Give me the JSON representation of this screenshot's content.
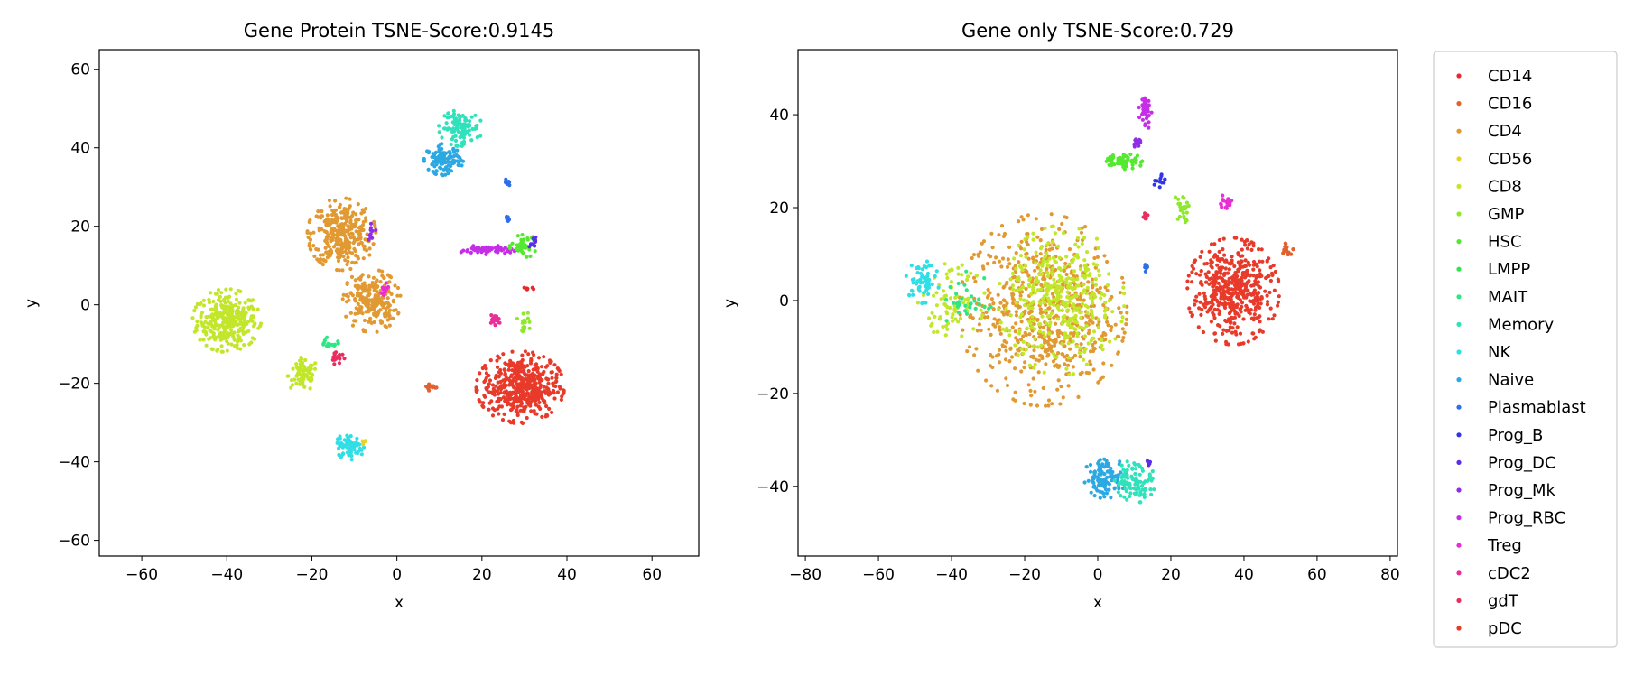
{
  "chart_data": [
    {
      "type": "scatter",
      "title": "Gene Protein TSNE-Score:0.9145",
      "xlabel": "x",
      "ylabel": "y",
      "xlim": [
        -70,
        71
      ],
      "ylim": [
        -64,
        65
      ],
      "xticks": [
        -60,
        -40,
        -20,
        0,
        20,
        40,
        60
      ],
      "xtick_labels": [
        "−60",
        "−40",
        "−20",
        "0",
        "20",
        "40",
        "60"
      ],
      "yticks": [
        -60,
        -40,
        -20,
        0,
        20,
        40,
        60
      ],
      "ytick_labels": [
        "−60",
        "−40",
        "−20",
        "0",
        "20",
        "40",
        "60"
      ],
      "grid": false,
      "clusters": [
        {
          "cell_type": "CD8",
          "cx": -40,
          "cy": -4,
          "rx": 7,
          "ry": 7,
          "n": 320
        },
        {
          "cell_type": "CD8",
          "cx": -22,
          "cy": -18,
          "rx": 3.5,
          "ry": 4,
          "n": 80
        },
        {
          "cell_type": "CD4",
          "cx": -13,
          "cy": 18,
          "rx": 7,
          "ry": 8,
          "n": 330
        },
        {
          "cell_type": "CD4",
          "cx": -6,
          "cy": 1,
          "rx": 6,
          "ry": 7,
          "n": 230
        },
        {
          "cell_type": "Memory",
          "cx": 15,
          "cy": 45,
          "rx": 4.5,
          "ry": 4,
          "n": 110
        },
        {
          "cell_type": "Naive",
          "cx": 11,
          "cy": 37,
          "rx": 4,
          "ry": 3.5,
          "n": 110
        },
        {
          "cell_type": "Prog_RBC",
          "cx": 21,
          "cy": 14,
          "rx": 6,
          "ry": 1,
          "n": 60
        },
        {
          "cell_type": "HSC",
          "cx": 30,
          "cy": 15,
          "rx": 3,
          "ry": 2.5,
          "n": 45
        },
        {
          "cell_type": "pDC",
          "cx": 29,
          "cy": -21,
          "rx": 9,
          "ry": 8,
          "n": 460
        },
        {
          "cell_type": "NK",
          "cx": -11,
          "cy": -36,
          "rx": 3,
          "ry": 3,
          "n": 80
        },
        {
          "cell_type": "CD16",
          "cx": 8,
          "cy": -21,
          "rx": 1.5,
          "ry": 1,
          "n": 15
        },
        {
          "cell_type": "gdT",
          "cx": -14,
          "cy": -13,
          "rx": 1.5,
          "ry": 2,
          "n": 18
        },
        {
          "cell_type": "MAIT",
          "cx": -16,
          "cy": -10,
          "rx": 2,
          "ry": 1.5,
          "n": 15
        },
        {
          "cell_type": "GMP",
          "cx": 30,
          "cy": -4,
          "rx": 1.5,
          "ry": 2.5,
          "n": 20
        },
        {
          "cell_type": "cDC2",
          "cx": 23,
          "cy": -4,
          "rx": 1.5,
          "ry": 1.5,
          "n": 15
        },
        {
          "cell_type": "Plasmablast",
          "cx": 26,
          "cy": 31,
          "rx": 0.6,
          "ry": 1,
          "n": 8
        },
        {
          "cell_type": "Plasmablast",
          "cx": 26,
          "cy": 22,
          "rx": 0.6,
          "ry": 1,
          "n": 8
        },
        {
          "cell_type": "Treg",
          "cx": -3,
          "cy": 4,
          "rx": 1.5,
          "ry": 2,
          "n": 12
        },
        {
          "cell_type": "Prog_Mk",
          "cx": -6,
          "cy": 19,
          "rx": 1,
          "ry": 2.5,
          "n": 10
        },
        {
          "cell_type": "Prog_DC",
          "cx": 32,
          "cy": 16,
          "rx": 1,
          "ry": 1.5,
          "n": 10
        },
        {
          "cell_type": "CD14",
          "cx": 31,
          "cy": 4,
          "rx": 1,
          "ry": 1,
          "n": 6
        },
        {
          "cell_type": "CD56",
          "cx": -8,
          "cy": -35,
          "rx": 0.6,
          "ry": 1,
          "n": 4
        }
      ]
    },
    {
      "type": "scatter",
      "title": "Gene only TSNE-Score:0.729",
      "xlabel": "x",
      "ylabel": "y",
      "xlim": [
        -82,
        82
      ],
      "ylim": [
        -55,
        54
      ],
      "xticks": [
        -80,
        -60,
        -40,
        -20,
        0,
        20,
        40,
        60,
        80
      ],
      "xtick_labels": [
        "−80",
        "−60",
        "−40",
        "−20",
        "0",
        "20",
        "40",
        "60",
        "80"
      ],
      "yticks": [
        -40,
        -20,
        0,
        20,
        40
      ],
      "ytick_labels": [
        "−40",
        "−20",
        "0",
        "20",
        "40"
      ],
      "grid": false,
      "clusters": [
        {
          "cell_type": "CD4",
          "cx": -15,
          "cy": -2,
          "rx": 20,
          "ry": 18,
          "n": 650
        },
        {
          "cell_type": "CD8",
          "cx": -10,
          "cy": 0,
          "rx": 15,
          "ry": 14,
          "n": 380
        },
        {
          "cell_type": "CD8",
          "cx": -40,
          "cy": 0,
          "rx": 8,
          "ry": 7,
          "n": 80
        },
        {
          "cell_type": "MAIT",
          "cx": -36,
          "cy": 0,
          "rx": 6,
          "ry": 6,
          "n": 30
        },
        {
          "cell_type": "NK",
          "cx": -48,
          "cy": 4,
          "rx": 4,
          "ry": 4,
          "n": 60
        },
        {
          "cell_type": "pDC",
          "cx": 37,
          "cy": 2,
          "rx": 11,
          "ry": 10,
          "n": 480
        },
        {
          "cell_type": "CD16",
          "cx": 52,
          "cy": 11,
          "rx": 1.5,
          "ry": 1.5,
          "n": 15
        },
        {
          "cell_type": "Naive",
          "cx": 2,
          "cy": -38,
          "rx": 5,
          "ry": 4,
          "n": 100
        },
        {
          "cell_type": "Memory",
          "cx": 10,
          "cy": -39,
          "rx": 5,
          "ry": 4,
          "n": 100
        },
        {
          "cell_type": "HSC",
          "cx": 7,
          "cy": 30,
          "rx": 5,
          "ry": 1.5,
          "n": 60
        },
        {
          "cell_type": "Prog_RBC",
          "cx": 13,
          "cy": 41,
          "rx": 1.5,
          "ry": 4,
          "n": 35
        },
        {
          "cell_type": "Prog_Mk",
          "cx": 11,
          "cy": 34,
          "rx": 1.5,
          "ry": 1,
          "n": 12
        },
        {
          "cell_type": "GMP",
          "cx": 23,
          "cy": 20,
          "rx": 2,
          "ry": 3,
          "n": 25
        },
        {
          "cell_type": "Prog_B",
          "cx": 17,
          "cy": 26,
          "rx": 1.5,
          "ry": 2,
          "n": 12
        },
        {
          "cell_type": "Treg",
          "cx": 35,
          "cy": 21,
          "rx": 2,
          "ry": 1.5,
          "n": 18
        },
        {
          "cell_type": "gdT",
          "cx": 13,
          "cy": 18,
          "rx": 0.8,
          "ry": 1,
          "n": 8
        },
        {
          "cell_type": "Plasmablast",
          "cx": 13,
          "cy": 7,
          "rx": 0.5,
          "ry": 1,
          "n": 6
        },
        {
          "cell_type": "Prog_DC",
          "cx": 14,
          "cy": -35,
          "rx": 1,
          "ry": 1,
          "n": 5
        }
      ]
    }
  ],
  "legend": {
    "placement": "right",
    "items": [
      {
        "label": "CD14",
        "color": "#e8282d"
      },
      {
        "label": "CD16",
        "color": "#e2612f"
      },
      {
        "label": "CD4",
        "color": "#e19a33"
      },
      {
        "label": "CD56",
        "color": "#e6d32a"
      },
      {
        "label": "CD8",
        "color": "#c2e62a"
      },
      {
        "label": "GMP",
        "color": "#8ee82d"
      },
      {
        "label": "HSC",
        "color": "#55e831"
      },
      {
        "label": "LMPP",
        "color": "#2fe64a"
      },
      {
        "label": "MAIT",
        "color": "#2fe684"
      },
      {
        "label": "Memory",
        "color": "#2fe2bb"
      },
      {
        "label": "NK",
        "color": "#30dfe6"
      },
      {
        "label": "Naive",
        "color": "#2ca8e2"
      },
      {
        "label": "Plasmablast",
        "color": "#2e6ee8"
      },
      {
        "label": "Prog_B",
        "color": "#3036e8"
      },
      {
        "label": "Prog_DC",
        "color": "#5a2ee8"
      },
      {
        "label": "Prog_Mk",
        "color": "#8f2ee6"
      },
      {
        "label": "Prog_RBC",
        "color": "#c52ee6"
      },
      {
        "label": "Treg",
        "color": "#e82ed2"
      },
      {
        "label": "cDC2",
        "color": "#e82e98"
      },
      {
        "label": "gdT",
        "color": "#e82e5e"
      },
      {
        "label": "pDC",
        "color": "#e83a2a"
      }
    ]
  }
}
